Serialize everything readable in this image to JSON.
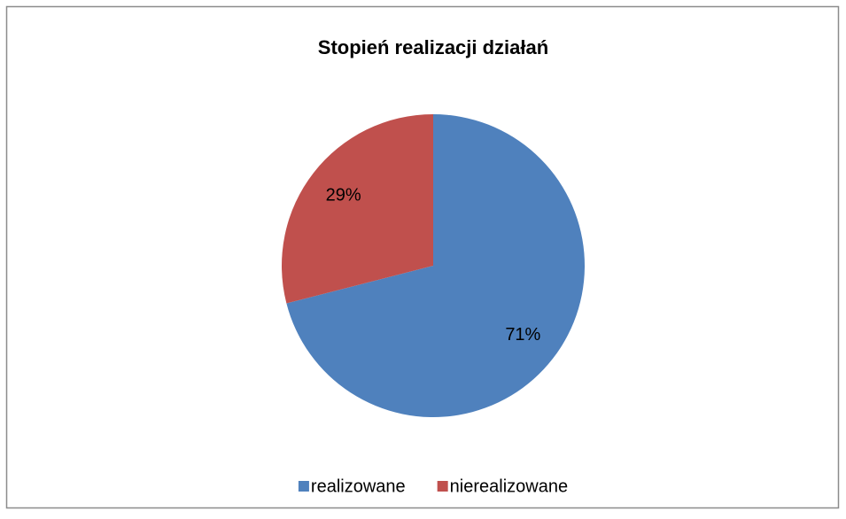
{
  "chart_data": {
    "type": "pie",
    "title": "Stopień realizacji działań",
    "categories": [
      "realizowane",
      "nierealizowane"
    ],
    "values": [
      71,
      29
    ],
    "value_labels": [
      "71%",
      "29%"
    ],
    "colors": [
      "#4f81bd",
      "#c0504d"
    ],
    "legend": "bottom"
  }
}
